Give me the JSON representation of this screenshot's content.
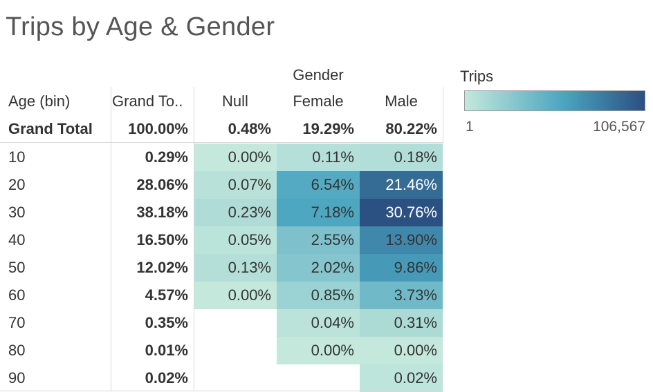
{
  "title": "Trips by Age & Gender",
  "columns": {
    "group_header": "Gender",
    "age_header": "Age (bin)",
    "total_header": "Grand To..",
    "genders": [
      "Null",
      "Female",
      "Male"
    ]
  },
  "grand_total_row": {
    "label": "Grand Total",
    "total": "100.00%",
    "values": [
      "0.48%",
      "19.29%",
      "80.22%"
    ]
  },
  "legend": {
    "title": "Trips",
    "min_label": "1",
    "max_label": "106,567",
    "color_low": "#c4e8dc",
    "color_mid": "#4aa5c0",
    "color_high": "#2b5082"
  },
  "chart_data": {
    "type": "heatmap",
    "title": "Trips by Age & Gender",
    "row_header": "Age (bin)",
    "column_group": "Gender",
    "columns": [
      "Null",
      "Female",
      "Male"
    ],
    "rows": [
      {
        "label": "10",
        "total": "0.29%",
        "values": [
          "0.00%",
          "0.11%",
          "0.18%"
        ]
      },
      {
        "label": "20",
        "total": "28.06%",
        "values": [
          "0.07%",
          "6.54%",
          "21.46%"
        ]
      },
      {
        "label": "30",
        "total": "38.18%",
        "values": [
          "0.23%",
          "7.18%",
          "30.76%"
        ]
      },
      {
        "label": "40",
        "total": "16.50%",
        "values": [
          "0.05%",
          "2.55%",
          "13.90%"
        ]
      },
      {
        "label": "50",
        "total": "12.02%",
        "values": [
          "0.13%",
          "2.02%",
          "9.86%"
        ]
      },
      {
        "label": "60",
        "total": "4.57%",
        "values": [
          "0.00%",
          "0.85%",
          "3.73%"
        ]
      },
      {
        "label": "70",
        "total": "0.35%",
        "values": [
          null,
          "0.04%",
          "0.31%"
        ]
      },
      {
        "label": "80",
        "total": "0.01%",
        "values": [
          null,
          "0.00%",
          "0.00%"
        ]
      },
      {
        "label": "90",
        "total": "0.02%",
        "values": [
          null,
          null,
          "0.02%"
        ]
      }
    ],
    "color_scale": {
      "label": "Trips",
      "min": 1,
      "max": 106567
    }
  }
}
